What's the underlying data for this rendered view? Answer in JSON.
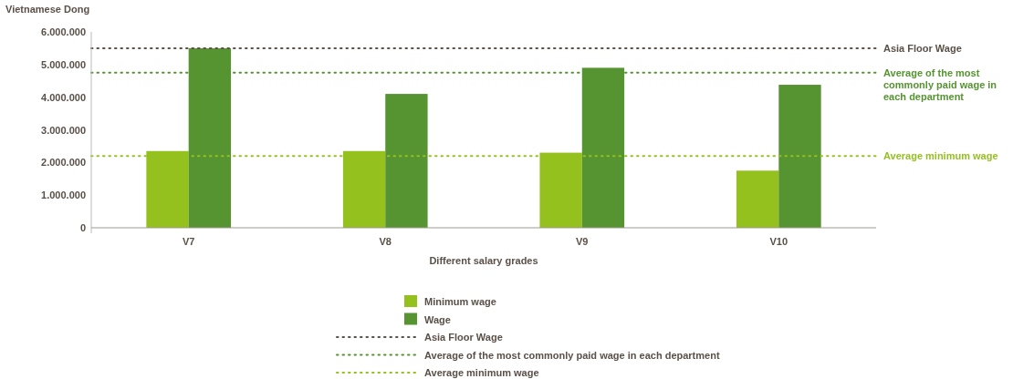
{
  "chart_data": {
    "type": "bar",
    "ylabel": "Vietnamese Dong",
    "xlabel": "Different salary grades",
    "categories": [
      "V7",
      "V8",
      "V9",
      "V10"
    ],
    "series": [
      {
        "name": "Minimum wage",
        "color": "#95c11f",
        "values": [
          2350000,
          2350000,
          2300000,
          1750000
        ]
      },
      {
        "name": "Wage",
        "color": "#559431",
        "values": [
          5500000,
          4100000,
          4900000,
          4380000
        ]
      }
    ],
    "ylim": [
      0,
      6000000
    ],
    "yticks": [
      0,
      {
        "value": 1000000,
        "label": "1.000.000"
      },
      {
        "value": 2000000,
        "label": "2.000.000"
      },
      {
        "value": 3000000,
        "label": "3.000.000"
      },
      {
        "value": 4000000,
        "label": "4.000.000"
      },
      {
        "value": 5000000,
        "label": "5.000.000"
      },
      {
        "value": 6000000,
        "label": "6.000.000"
      }
    ],
    "ref_lines": [
      {
        "axis": "y",
        "value": 5500000,
        "label": "Asia Floor Wage",
        "color": "#5a5048",
        "line_style": "dotted"
      },
      {
        "axis": "y",
        "value": 4750000,
        "label": "Average of the most commonly paid wage in each department",
        "color": "#559431",
        "line_style": "dotted"
      },
      {
        "axis": "y",
        "value": 2200000,
        "label": "Average minimum wage",
        "color": "#95c11f",
        "line_style": "dotted"
      }
    ],
    "legend": "bottom",
    "grid": false
  }
}
